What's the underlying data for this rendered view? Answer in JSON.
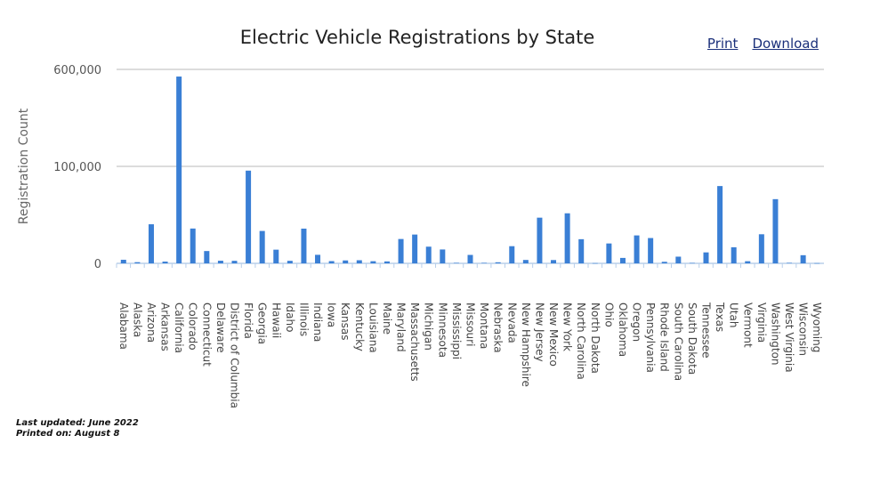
{
  "header": {
    "print_label": "Print",
    "download_label": "Download"
  },
  "footer": {
    "updated": "Last updated: June 2022",
    "printed": "Printed on: August 8"
  },
  "chart_data": {
    "type": "bar",
    "title": "Electric Vehicle Registrations by State",
    "xlabel": "",
    "ylabel": "Registration Count",
    "ylim": [
      0,
      600000
    ],
    "y_ticks": [
      0,
      100000,
      600000
    ],
    "y_tick_labels": [
      "0",
      "100,000",
      "600,000"
    ],
    "grid": true,
    "bar_color": "#3a7fd5",
    "categories": [
      "Alabama",
      "Alaska",
      "Arizona",
      "Arkansas",
      "California",
      "Colorado",
      "Connecticut",
      "Delaware",
      "District of Columbia",
      "Florida",
      "Georgia",
      "Hawaii",
      "Idaho",
      "Illinois",
      "Indiana",
      "Iowa",
      "Kansas",
      "Kentucky",
      "Louisiana",
      "Maine",
      "Maryland",
      "Massachusetts",
      "Michigan",
      "Minnesota",
      "Mississippi",
      "Missouri",
      "Montana",
      "Nebraska",
      "Nevada",
      "New Hampshire",
      "New Jersey",
      "New Mexico",
      "New York",
      "North Carolina",
      "North Dakota",
      "Ohio",
      "Oklahoma",
      "Oregon",
      "Pennsylvania",
      "Rhode Island",
      "South Carolina",
      "South Dakota",
      "Tennessee",
      "Texas",
      "Utah",
      "Vermont",
      "Virginia",
      "Washington",
      "West Virginia",
      "Wisconsin",
      "Wyoming"
    ],
    "values": [
      3700,
      1200,
      40300,
      1800,
      563100,
      35900,
      12700,
      2700,
      2600,
      95600,
      33400,
      14100,
      2600,
      35800,
      8800,
      2300,
      3000,
      3200,
      2200,
      2000,
      25100,
      29700,
      17200,
      14300,
      500,
      8700,
      500,
      1100,
      17700,
      3500,
      47100,
      3400,
      51600,
      24900,
      200,
      20500,
      5600,
      28800,
      26100,
      1600,
      6900,
      400,
      11300,
      79700,
      16600,
      2200,
      30000,
      66200,
      500,
      8400,
      200
    ]
  }
}
